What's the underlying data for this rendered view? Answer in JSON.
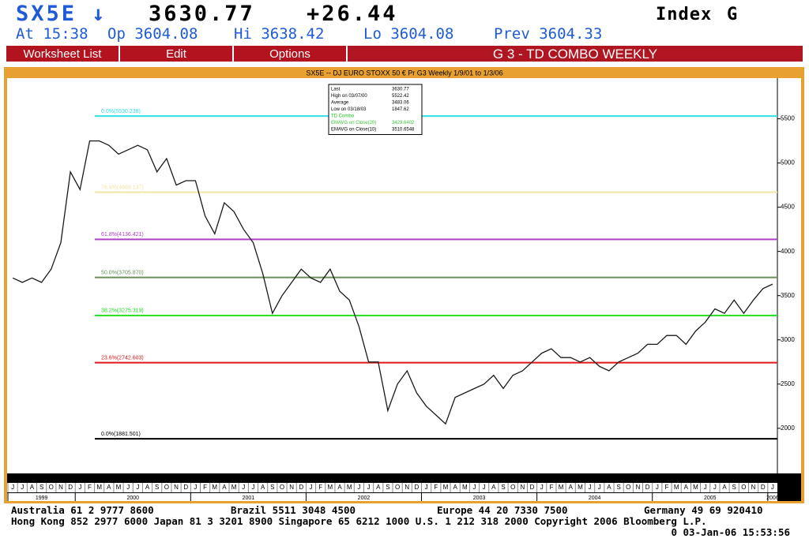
{
  "header": {
    "ticker": "SX5E ↓",
    "price": "3630.77",
    "change": "+26.44",
    "type": "Index",
    "page": "G",
    "quote": [
      "At 15:38",
      "Op 3604.08",
      "Hi 3638.42",
      "Lo 3604.08",
      "Prev 3604.33"
    ]
  },
  "menu": [
    "Worksheet List",
    "Edit",
    "Options"
  ],
  "screen_title": "G  3 - TD COMBO WEEKLY",
  "chart_data": {
    "type": "line",
    "title": "SX5E -- DJ EURO STOXX 50 € Pr G3 Weekly 1/9/01 to 1/3/06",
    "categories": [
      "J",
      "J",
      "A",
      "S",
      "O",
      "N",
      "D",
      "J",
      "F",
      "M",
      "A",
      "M",
      "J",
      "J",
      "A",
      "S",
      "O",
      "N",
      "D",
      "J",
      "F",
      "M",
      "A",
      "M",
      "J",
      "J",
      "A",
      "S",
      "O",
      "N",
      "D",
      "J",
      "F",
      "M",
      "A",
      "M",
      "J",
      "J",
      "A",
      "S",
      "O",
      "N",
      "D",
      "J",
      "F",
      "M",
      "A",
      "M",
      "J",
      "J",
      "A",
      "S",
      "O",
      "N",
      "D",
      "J",
      "F",
      "M",
      "A",
      "M",
      "J",
      "J",
      "A",
      "S",
      "O",
      "N",
      "D",
      "J",
      "F",
      "M",
      "A",
      "M",
      "J",
      "J",
      "A",
      "S",
      "O",
      "N",
      "D",
      "J"
    ],
    "values": [
      3700,
      3650,
      3700,
      3650,
      3800,
      4100,
      4900,
      4700,
      5250,
      5250,
      5200,
      5100,
      5150,
      5200,
      5150,
      4900,
      5050,
      4750,
      4800,
      4800,
      4400,
      4200,
      4550,
      4450,
      4250,
      4100,
      3750,
      3300,
      3500,
      3650,
      3800,
      3700,
      3650,
      3800,
      3550,
      3450,
      3150,
      2750,
      2750,
      2200,
      2500,
      2650,
      2400,
      2250,
      2150,
      2050,
      2350,
      2400,
      2450,
      2500,
      2600,
      2450,
      2600,
      2650,
      2750,
      2850,
      2900,
      2800,
      2800,
      2750,
      2800,
      2700,
      2650,
      2750,
      2800,
      2850,
      2950,
      2950,
      3050,
      3050,
      2950,
      3100,
      3200,
      3350,
      3300,
      3450,
      3300,
      3450,
      3580,
      3630
    ],
    "color": "#1a1a1a",
    "years": [
      "1999",
      "2000",
      "2001",
      "2002",
      "2003",
      "2004",
      "2005",
      "2006"
    ],
    "ylim": [
      1490,
      5960
    ],
    "yticks": [
      2000,
      2500,
      3000,
      3500,
      4000,
      4500,
      5000,
      5500
    ],
    "levels": [
      {
        "label": "0.0%(5530.238)",
        "value": 5530.238,
        "color": "#30e0e8"
      },
      {
        "label": "76.4%(4669.137)",
        "value": 4669.137,
        "color": "#f0e6a0"
      },
      {
        "label": "61.8%(4136.421)",
        "value": 4136.421,
        "color": "#b040c8"
      },
      {
        "label": "50.0%(3705.870)",
        "value": 3705.87,
        "color": "#6b8e5b"
      },
      {
        "label": "38.2%(3275.319)",
        "value": 3275.319,
        "color": "#22dd22"
      },
      {
        "label": "23.6%(2742.603)",
        "value": 2742.603,
        "color": "#e01818"
      },
      {
        "label": "0.0%(1881.501)",
        "value": 1881.501,
        "color": "#000000"
      }
    ],
    "legend_box": [
      [
        "Last",
        "3630.77"
      ],
      [
        "High on  03/07/00",
        "5522.42"
      ],
      [
        "Average",
        "3483.06"
      ],
      [
        "Low on  03/18/03",
        "1847.62"
      ],
      [
        "TD Combo",
        ""
      ],
      [
        "EMAVG on Close(20)",
        "3429.6402"
      ],
      [
        "EMAVG on Close(10)",
        "3510.6548"
      ]
    ]
  },
  "footer": {
    "line1": [
      "Australia 61 2 9777 8600",
      "Brazil 5511 3048 4500",
      "Europe 44 20 7330 7500",
      "Germany 49 69 920410"
    ],
    "line2": "Hong Kong 852 2977 6000 Japan 81 3 3201 8900 Singapore 65 6212 1000 U.S. 1 212 318 2000 Copyright 2006 Bloomberg L.P.",
    "line3": "0 03-Jan-06 15:53:56"
  }
}
